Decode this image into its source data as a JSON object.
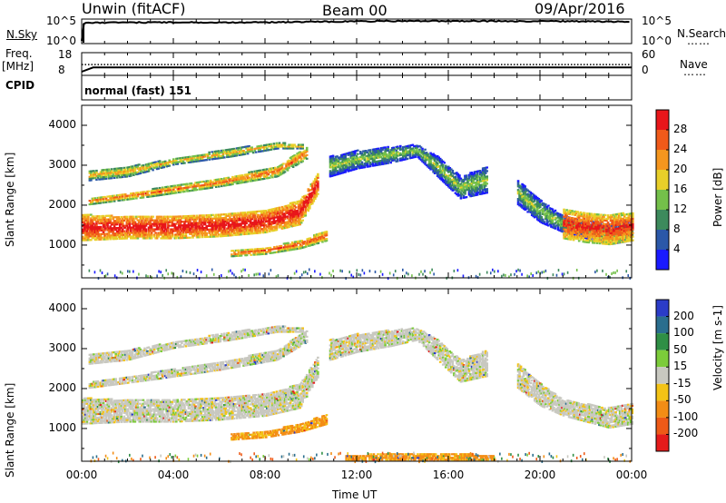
{
  "header": {
    "station": "Unwin (fitACF)",
    "beam": "Beam 00",
    "date": "09/Apr/2016"
  },
  "nsky_panel": {
    "label": "N.Sky",
    "left_top": "10^5",
    "left_bottom": "10^0",
    "right_top": "10^5",
    "right_bottom": "10^0",
    "right_label": "N.Search"
  },
  "freq_panel": {
    "label_line1": "Freq.",
    "label_line2": "[MHz]",
    "left_top": "18",
    "left_bottom": "8",
    "right_top": "60",
    "right_bottom": "0",
    "right_label": "Nave"
  },
  "cpid_panel": {
    "label": "CPID",
    "text": "normal (fast) 151"
  },
  "x_axis": {
    "ticks": [
      "00:00",
      "04:00",
      "08:00",
      "12:00",
      "16:00",
      "20:00",
      "00:00"
    ],
    "label": "Time UT"
  },
  "power_panel": {
    "y_label": "Slant Range [km]",
    "y_ticks": [
      "1000",
      "2000",
      "3000",
      "4000"
    ],
    "colorbar_label": "Power [dB]",
    "colorbar_ticks": [
      "4",
      "8",
      "12",
      "16",
      "20",
      "24",
      "28"
    ],
    "colors": [
      "#1a1aff",
      "#2b58a8",
      "#3d8a5c",
      "#74c04a",
      "#e8cf29",
      "#f5961e",
      "#f05a1a",
      "#e8161a"
    ]
  },
  "velocity_panel": {
    "y_label": "Slant Range [km]",
    "y_ticks": [
      "1000",
      "2000",
      "3000",
      "4000"
    ],
    "colorbar_label": "Velocity [m s-1]",
    "colorbar_ticks": [
      "200",
      "100",
      "50",
      "15",
      "-15",
      "-50",
      "-100",
      "-200"
    ],
    "colors": [
      "#2b3cc8",
      "#2a6e8e",
      "#2f8f45",
      "#7ccc3a",
      "#c8c8c0",
      "#f3c316",
      "#f38d15",
      "#ee5a17",
      "#e51b1b"
    ]
  },
  "chart_data": [
    {
      "type": "line",
      "title": "N.Sky / N.Search",
      "x_range_hours": [
        0,
        24
      ],
      "series": [
        {
          "name": "N.Sky",
          "scale": "log",
          "x": [
            0,
            0.2,
            4,
            8,
            11,
            12,
            16,
            20,
            24
          ],
          "y": [
            1,
            100000,
            120000,
            120000,
            200000,
            250000,
            300000,
            250000,
            200000
          ]
        }
      ]
    },
    {
      "type": "line",
      "title": "Freq. / Nave",
      "x_range_hours": [
        0,
        24
      ],
      "series": [
        {
          "name": "Freq. [MHz]",
          "x": [
            0,
            0.2,
            24
          ],
          "y": [
            8,
            10.5,
            10.5
          ]
        },
        {
          "name": "Nave",
          "x": [
            0,
            24
          ],
          "y": [
            25,
            25
          ]
        }
      ]
    },
    {
      "type": "heatmap",
      "title": "Power [dB]",
      "x_range_hours": [
        0,
        24
      ],
      "ylim": [
        180,
        4500
      ],
      "ylabel": "Slant Range [km]",
      "xlabel": "Time UT",
      "zlim": [
        0,
        30
      ],
      "bands": [
        {
          "t": [
            0,
            2,
            4,
            6,
            8,
            9.5,
            10.3
          ],
          "r_lo": [
            1100,
            1150,
            1150,
            1200,
            1300,
            1500,
            2300
          ],
          "r_hi": [
            1750,
            1700,
            1720,
            1750,
            1850,
            2100,
            2800
          ],
          "z": 24
        },
        {
          "t": [
            0.3,
            3,
            6,
            8.5,
            9.8
          ],
          "r_lo": [
            2000,
            2200,
            2450,
            2700,
            3150
          ],
          "r_hi": [
            2150,
            2380,
            2650,
            2950,
            3450
          ],
          "z": 18
        },
        {
          "t": [
            0.3,
            2,
            4,
            6.5,
            8.5,
            9.6
          ],
          "r_lo": [
            2600,
            2700,
            3000,
            3200,
            3400,
            3400
          ],
          "r_hi": [
            2850,
            2950,
            3150,
            3400,
            3550,
            3500
          ],
          "z": 14
        },
        {
          "t": [
            6.5,
            8,
            9.5,
            10.7
          ],
          "r_lo": [
            700,
            760,
            900,
            1100
          ],
          "r_hi": [
            850,
            920,
            1100,
            1350
          ],
          "z": 20
        },
        {
          "t": [
            10.8,
            12,
            13.5,
            14.6,
            15.5,
            16.5,
            17.7
          ],
          "r_lo": [
            2700,
            2900,
            3050,
            3200,
            2700,
            2150,
            2300
          ],
          "r_hi": [
            3200,
            3350,
            3450,
            3500,
            3200,
            2700,
            2950
          ],
          "z": 8
        },
        {
          "t": [
            19,
            20,
            21,
            22,
            23,
            24
          ],
          "r_lo": [
            2000,
            1550,
            1300,
            1150,
            1000,
            1100
          ],
          "r_hi": [
            2600,
            2100,
            1700,
            1600,
            1500,
            1600
          ],
          "z": 8
        },
        {
          "t": [
            21,
            22,
            23,
            24
          ],
          "r_lo": [
            1150,
            1050,
            1000,
            1100
          ],
          "r_hi": [
            1900,
            1800,
            1750,
            1800
          ],
          "z": 22
        }
      ]
    },
    {
      "type": "heatmap",
      "title": "Velocity [m s-1]",
      "x_range_hours": [
        0,
        24
      ],
      "ylim": [
        180,
        4500
      ],
      "ylabel": "Slant Range [km]",
      "xlabel": "Time UT",
      "zlim": [
        -200,
        200
      ],
      "bands": [
        {
          "t": [
            0,
            2,
            4,
            6,
            8,
            9.5,
            10.3
          ],
          "r_lo": [
            1100,
            1150,
            1150,
            1200,
            1300,
            1500,
            2300
          ],
          "r_hi": [
            1750,
            1700,
            1720,
            1750,
            1850,
            2100,
            2800
          ],
          "z": 0
        },
        {
          "t": [
            0.3,
            3,
            6,
            8.5,
            9.8
          ],
          "r_lo": [
            2000,
            2200,
            2450,
            2700,
            3150
          ],
          "r_hi": [
            2150,
            2380,
            2650,
            2950,
            3450
          ],
          "z": 0
        },
        {
          "t": [
            0.3,
            2,
            4,
            6.5,
            8.5,
            9.6
          ],
          "r_lo": [
            2600,
            2700,
            3000,
            3200,
            3400,
            3400
          ],
          "r_hi": [
            2850,
            2950,
            3150,
            3400,
            3550,
            3500
          ],
          "z": 0
        },
        {
          "t": [
            6.5,
            8,
            9.5,
            10.7
          ],
          "r_lo": [
            700,
            760,
            900,
            1100
          ],
          "r_hi": [
            850,
            920,
            1100,
            1350
          ],
          "z": -40
        },
        {
          "t": [
            10.8,
            12,
            13.5,
            14.6,
            15.5,
            16.5,
            17.7
          ],
          "r_lo": [
            2700,
            2900,
            3050,
            3200,
            2700,
            2150,
            2300
          ],
          "r_hi": [
            3200,
            3350,
            3450,
            3500,
            3200,
            2700,
            2950
          ],
          "z": 0
        },
        {
          "t": [
            19,
            20,
            21,
            22,
            23,
            24
          ],
          "r_lo": [
            2000,
            1550,
            1300,
            1150,
            1000,
            1100
          ],
          "r_hi": [
            2600,
            2100,
            1700,
            1600,
            1500,
            1600
          ],
          "z": 0
        },
        {
          "t": [
            11.5,
            14,
            16,
            18
          ],
          "r_lo": [
            200,
            200,
            200,
            200
          ],
          "r_hi": [
            320,
            360,
            380,
            300
          ],
          "z": -40
        }
      ]
    }
  ]
}
